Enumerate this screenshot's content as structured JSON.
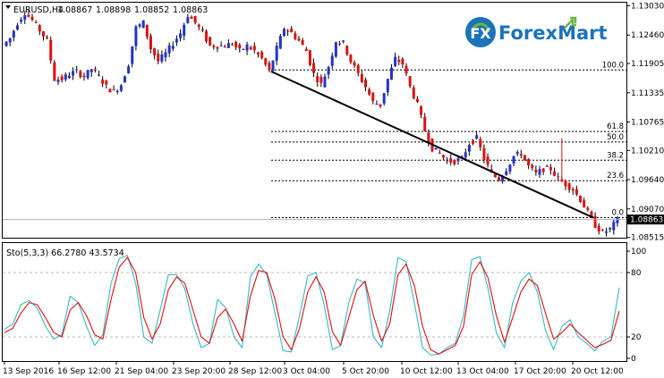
{
  "symbol_header": {
    "symbol": "EURUSD,H4",
    "open": "1.08867",
    "high": "1.08898",
    "low": "1.08852",
    "close": "1.08863"
  },
  "brand": {
    "forex": "Forex",
    "mart": "Mart",
    "logo_letters": "FX"
  },
  "colors": {
    "bull": "#2233cc",
    "bear": "#dd1111",
    "wick": "#000000",
    "stoch_main": "#3bb7c4",
    "stoch_signal": "#dd1111",
    "grid": "#b9b9b9",
    "brand_blue": "#1b73b9",
    "brand_green": "#6fb540"
  },
  "chart_data": [
    {
      "type": "candlestick",
      "title": "EURUSD,H4",
      "ylim": [
        1.085,
        1.131
      ],
      "yticks": [
        "1.13030",
        "1.12460",
        "1.11905",
        "1.11335",
        "1.10765",
        "1.10210",
        "1.09640",
        "1.09070",
        "1.08515"
      ],
      "last_price_label": "1.08863",
      "x_tick_labels": [
        "13 Sep 2016",
        "16 Sep 12:00",
        "21 Sep 04:00",
        "23 Sep 20:00",
        "28 Sep 12:00",
        "3 Oct 04:00",
        "5 Oct 20:00",
        "10 Oct 12:00",
        "13 Oct 04:00",
        "17 Oct 20:00",
        "20 Oct 12:00"
      ],
      "fibonacci": {
        "levels": [
          {
            "label": "100.0",
            "price": 1.1178
          },
          {
            "label": "61.8",
            "price": 1.1058
          },
          {
            "label": "50.0",
            "price": 1.10375
          },
          {
            "label": "38.2",
            "price": 1.1002
          },
          {
            "label": "23.6",
            "price": 1.0962
          },
          {
            "label": "0.0",
            "price": 1.089
          }
        ]
      },
      "trendline": {
        "from_price": 1.1175,
        "to_price": 1.089
      },
      "path": [
        1.1225,
        1.124,
        1.127,
        1.129,
        1.1275,
        1.1255,
        1.1235,
        1.116,
        1.116,
        1.117,
        1.1175,
        1.1165,
        1.118,
        1.1165,
        1.1145,
        1.1135,
        1.115,
        1.119,
        1.126,
        1.127,
        1.122,
        1.1195,
        1.121,
        1.123,
        1.125,
        1.1285,
        1.127,
        1.125,
        1.1225,
        1.1225,
        1.1225,
        1.123,
        1.1215,
        1.1225,
        1.1215,
        1.12,
        1.1175,
        1.122,
        1.126,
        1.125,
        1.1235,
        1.1215,
        1.117,
        1.115,
        1.1185,
        1.1235,
        1.123,
        1.1195,
        1.117,
        1.1145,
        1.1115,
        1.111,
        1.116,
        1.12,
        1.119,
        1.1145,
        1.111,
        1.106,
        1.1025,
        1.1015,
        1.1,
        1.1,
        1.1005,
        1.1035,
        1.1045,
        1.1005,
        1.0975,
        1.0965,
        1.0985,
        1.101,
        1.1015,
        1.099,
        1.0975,
        1.0985,
        1.0985,
        1.0965,
        1.0955,
        1.0945,
        1.0925,
        1.09,
        1.0875,
        1.086,
        1.0868,
        1.0886
      ],
      "big_wicks": [
        {
          "index": 75,
          "high": 1.1045
        }
      ]
    },
    {
      "type": "line",
      "title": "Sto(5,3,3) 66.2780 43.5734",
      "ylim": [
        0,
        100
      ],
      "yticks": [
        "100",
        "80",
        "20",
        "0"
      ],
      "levels": [
        80,
        20
      ],
      "series": [
        {
          "values": [
            27,
            32,
            50,
            54,
            47,
            30,
            18,
            22,
            58,
            52,
            30,
            12,
            22,
            70,
            93,
            96,
            70,
            20,
            14,
            45,
            78,
            78,
            65,
            32,
            10,
            14,
            55,
            47,
            20,
            10,
            76,
            88,
            78,
            42,
            7,
            6,
            40,
            77,
            80,
            50,
            8,
            12,
            52,
            74,
            70,
            20,
            10,
            44,
            94,
            90,
            52,
            10,
            3,
            4,
            10,
            14,
            40,
            92,
            95,
            65,
            24,
            10,
            52,
            72,
            80,
            62,
            26,
            8,
            30,
            36,
            20,
            14,
            7,
            16,
            20,
            66
          ]
        },
        {
          "values": [
            24,
            28,
            42,
            52,
            50,
            38,
            24,
            20,
            45,
            52,
            40,
            22,
            18,
            55,
            85,
            94,
            80,
            38,
            18,
            32,
            64,
            76,
            70,
            45,
            20,
            14,
            38,
            46,
            32,
            16,
            58,
            82,
            80,
            55,
            20,
            8,
            28,
            62,
            76,
            62,
            25,
            12,
            38,
            64,
            72,
            40,
            16,
            32,
            78,
            88,
            68,
            30,
            8,
            4,
            8,
            12,
            30,
            78,
            90,
            75,
            40,
            15,
            38,
            62,
            74,
            68,
            42,
            18,
            24,
            32,
            24,
            17,
            10,
            13,
            17,
            44
          ]
        }
      ]
    }
  ]
}
